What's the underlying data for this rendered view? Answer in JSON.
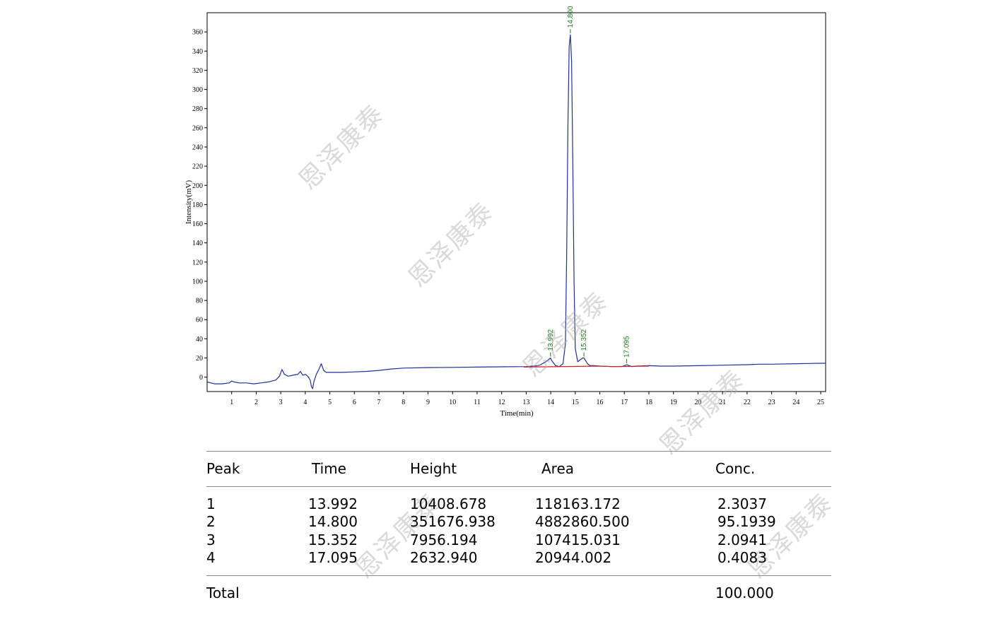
{
  "chart_data": {
    "type": "line",
    "xlabel": "Time(min)",
    "ylabel": "Intensity(mV)",
    "xlim": [
      0,
      25.2
    ],
    "ylim": [
      -15,
      380
    ],
    "x_ticks": [
      "1",
      "2",
      "3",
      "4",
      "5",
      "6",
      "7",
      "8",
      "9",
      "10",
      "11",
      "12",
      "13",
      "14",
      "15",
      "16",
      "17",
      "18",
      "19",
      "20",
      "21",
      "22",
      "23",
      "24",
      "25"
    ],
    "y_ticks": [
      "0",
      "20",
      "40",
      "60",
      "80",
      "100",
      "120",
      "140",
      "160",
      "180",
      "200",
      "220",
      "240",
      "260",
      "280",
      "300",
      "320",
      "340",
      "360"
    ],
    "series": [
      {
        "color": "#1f2f9c",
        "x": [
          0,
          0.3,
          0.6,
          0.9,
          1.0,
          1.1,
          1.3,
          1.6,
          1.9,
          2.2,
          2.5,
          2.8,
          2.95,
          3.05,
          3.15,
          3.3,
          3.5,
          3.7,
          3.8,
          3.9,
          4.0,
          4.1,
          4.2,
          4.25,
          4.3,
          4.35,
          4.45,
          4.55,
          4.65,
          4.75,
          4.85,
          5.0,
          5.5,
          6.0,
          6.5,
          7.0,
          7.5,
          8.0,
          9.0,
          10.0,
          11.0,
          12.0,
          13.0,
          13.5,
          13.8,
          13.95,
          13.992,
          14.05,
          14.2,
          14.35,
          14.5,
          14.6,
          14.65,
          14.7,
          14.75,
          14.8,
          14.85,
          14.9,
          14.95,
          15.0,
          15.1,
          15.2,
          15.3,
          15.352,
          15.4,
          15.5,
          15.6,
          15.8,
          16.0,
          16.5,
          16.9,
          17.0,
          17.095,
          17.2,
          17.3,
          17.5,
          18.0,
          18.5,
          19.0,
          20.0,
          21.0,
          22.0,
          22.5,
          23.0,
          24.0,
          25.0,
          25.2
        ],
        "y": [
          -5,
          -7,
          -7,
          -6,
          -4,
          -5,
          -6,
          -6,
          -7,
          -6,
          -5,
          -3,
          1,
          8,
          3,
          1,
          2,
          3,
          6,
          2,
          3,
          1,
          -3,
          -10,
          -12,
          -5,
          3,
          8,
          14,
          7,
          5,
          5,
          5,
          5.5,
          6,
          7,
          8.5,
          9.5,
          10,
          10.2,
          10.5,
          10.8,
          11,
          12,
          16,
          19,
          20,
          17,
          12,
          11,
          14,
          35,
          130,
          260,
          345,
          357,
          330,
          220,
          100,
          30,
          16,
          18,
          20,
          20,
          18,
          14,
          12,
          12,
          11.5,
          11,
          11,
          12,
          13,
          12,
          11,
          11.5,
          12,
          11.5,
          11.5,
          12,
          12.5,
          13,
          13.5,
          13.5,
          14,
          14.5,
          14.5
        ]
      },
      {
        "color": "#d42020",
        "x": [
          12.9,
          16.0,
          16.5,
          18.0
        ],
        "y": [
          10.5,
          11.5,
          11,
          11.5
        ]
      }
    ],
    "peaks": [
      {
        "label": "13.992",
        "x": 13.992,
        "y": 20
      },
      {
        "label": "14.800",
        "x": 14.8,
        "y": 357
      },
      {
        "label": "15.352",
        "x": 15.352,
        "y": 20
      },
      {
        "label": "17.095",
        "x": 17.095,
        "y": 13
      }
    ]
  },
  "watermark": "恩泽康泰",
  "table": {
    "headers": [
      "Peak",
      "Time",
      "Height",
      "Area",
      "Conc."
    ],
    "rows": [
      [
        "1",
        "13.992",
        "10408.678",
        "118163.172",
        "2.3037"
      ],
      [
        "2",
        "14.800",
        "351676.938",
        "4882860.500",
        "95.1939"
      ],
      [
        "3",
        "15.352",
        "7956.194",
        "107415.031",
        "2.0941"
      ],
      [
        "4",
        "17.095",
        "2632.940",
        "20944.002",
        "0.4083"
      ]
    ],
    "total_label": "Total",
    "total_value": "100.000"
  }
}
